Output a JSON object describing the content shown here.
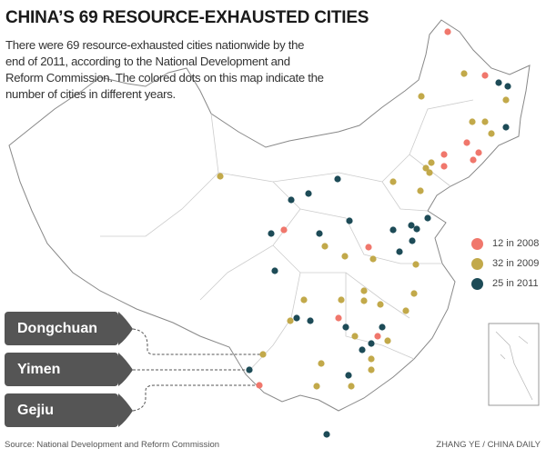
{
  "title": "CHINA’S 69 RESOURCE-EXHAUSTED CITIES",
  "description": "There were 69 resource-exhausted cities nationwide by the end of 2011, according to the National Development and Reform Commission. The colored dots on this map indicate the number of cities in different years.",
  "legend": [
    {
      "label": "12 in 2008",
      "year": 2008,
      "count": 12,
      "color": "#f0776c"
    },
    {
      "label": "32 in 2009",
      "year": 2009,
      "count": 32,
      "color": "#c2a94a"
    },
    {
      "label": "25 in 2011",
      "year": 2011,
      "count": 25,
      "color": "#1d4b57"
    }
  ],
  "callouts": [
    {
      "label": "Dongchuan",
      "year": 2009
    },
    {
      "label": "Yimen",
      "year": 2011
    },
    {
      "label": "Gejiu",
      "year": 2008
    }
  ],
  "source": "Source: National Development and Reform Commission",
  "credit": "ZHANG YE / CHINA DAILY"
}
